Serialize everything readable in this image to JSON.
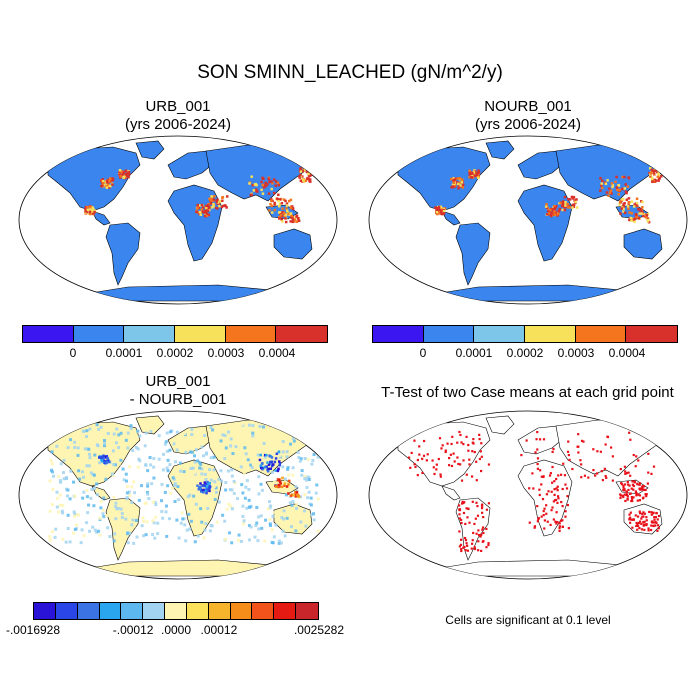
{
  "figure": {
    "title": "SON SMINN_LEACHED (gN/m^2/y)"
  },
  "panels": {
    "urb": {
      "title_line1": "URB_001",
      "title_line2": "(yrs 2006-2024)"
    },
    "nourb": {
      "title_line1": "NOURB_001",
      "title_line2": "(yrs 2006-2024)"
    },
    "diff": {
      "title_line1": "URB_001",
      "title_line2": "- NOURB_001"
    },
    "ttest": {
      "title": "T-Test of two Case means at each grid point",
      "note": "Cells are significant at 0.1 level"
    }
  },
  "colorbars": {
    "top": {
      "colors": [
        "#3b16f0",
        "#3a86ee",
        "#7dc6ea",
        "#f7e05a",
        "#f5751f",
        "#d8302b"
      ],
      "labels": [
        "0",
        "0.0001",
        "0.0002",
        "0.0003",
        "0.0004"
      ]
    },
    "diff": {
      "colors": [
        "#2a12d6",
        "#2a46e6",
        "#3b73e5",
        "#2aa6ee",
        "#5cb8ef",
        "#a2d3f0",
        "#fff5b3",
        "#fbe25a",
        "#f6b42c",
        "#f58d1a",
        "#f2531a",
        "#e51a13",
        "#c8262b"
      ],
      "labels": [
        "-.0016928",
        "-.00012",
        ".0000",
        ".00012",
        ".0025282"
      ]
    }
  },
  "colors": {
    "ocean": "#ffffff",
    "land_base_top": "#3a86ee",
    "land_base_diff": "#fff5b3",
    "significant": "#e8111a"
  }
}
